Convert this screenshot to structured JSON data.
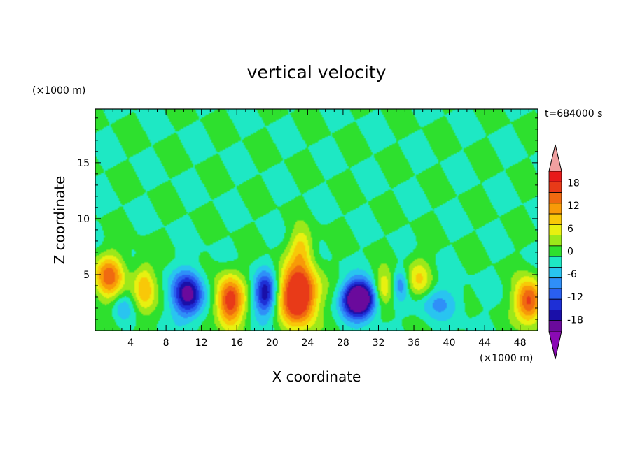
{
  "chart_data": {
    "type": "heatmap",
    "title": "vertical velocity",
    "xlabel": "X coordinate",
    "ylabel": "Z coordinate",
    "x_unit": "(×1000 m)",
    "y_unit": "(×1000 m)",
    "time_label": "t=684000 s",
    "xlim": [
      0,
      50
    ],
    "ylim": [
      0,
      19.8
    ],
    "x_ticks": [
      "4",
      "8",
      "12",
      "16",
      "20",
      "24",
      "28",
      "32",
      "36",
      "40",
      "44",
      "48"
    ],
    "y_ticks": [
      "5",
      "10",
      "15"
    ],
    "colorbar": {
      "levels": [
        -21,
        -18,
        -15,
        -12,
        -9,
        -6,
        -3,
        0,
        3,
        6,
        9,
        12,
        15,
        18,
        21
      ],
      "tick_labels": [
        "18",
        "12",
        "6",
        "0",
        "-6",
        "-12",
        "-18"
      ],
      "colors": [
        "#6a0a9c",
        "#1a0fa8",
        "#1e2fd6",
        "#2a5ff0",
        "#2f8ff8",
        "#29c4f0",
        "#1ee8c4",
        "#2ee02e",
        "#9ce81a",
        "#e8f010",
        "#f8c808",
        "#f89a08",
        "#f06a10",
        "#e83a18",
        "#e81a1a"
      ],
      "extend_colors": {
        "min": "#8a0ab4",
        "max": "#f0a0a0"
      }
    },
    "grid": false,
    "features": [
      {
        "x": 1.5,
        "z": 4.8,
        "w": 65,
        "sx": 1.2,
        "sz": 1.4
      },
      {
        "x": 5.5,
        "z": 3.8,
        "w": 45,
        "sx": 0.9,
        "sz": 1.6
      },
      {
        "x": 3.0,
        "z": 2.0,
        "w": -20,
        "sx": 0.8,
        "sz": 0.9
      },
      {
        "x": 10.5,
        "z": 3.2,
        "w": -80,
        "sx": 1.2,
        "sz": 1.4
      },
      {
        "x": 15.2,
        "z": 2.6,
        "w": 85,
        "sx": 1.1,
        "sz": 1.6
      },
      {
        "x": 19.2,
        "z": 3.3,
        "w": -70,
        "sx": 0.9,
        "sz": 1.3
      },
      {
        "x": 23.0,
        "z": 3.2,
        "w": 110,
        "sx": 1.5,
        "sz": 1.9
      },
      {
        "x": 23.3,
        "z": 7.5,
        "w": 35,
        "sx": 0.9,
        "sz": 1.2
      },
      {
        "x": 29.8,
        "z": 2.8,
        "w": -120,
        "sx": 1.3,
        "sz": 1.1
      },
      {
        "x": 32.6,
        "z": 3.8,
        "w": 40,
        "sx": 0.8,
        "sz": 1.1
      },
      {
        "x": 34.5,
        "z": 4.2,
        "w": -30,
        "sx": 0.6,
        "sz": 0.9
      },
      {
        "x": 36.5,
        "z": 4.5,
        "w": 35,
        "sx": 1.0,
        "sz": 1.4
      },
      {
        "x": 38.5,
        "z": 2.5,
        "w": -25,
        "sx": 2.0,
        "sz": 1.0
      },
      {
        "x": 49.0,
        "z": 2.6,
        "w": 80,
        "sx": 1.1,
        "sz": 1.4
      }
    ]
  }
}
